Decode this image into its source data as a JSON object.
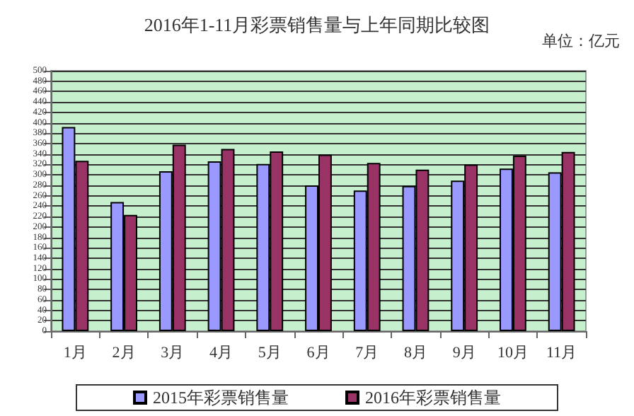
{
  "chart_data": {
    "type": "bar",
    "title": "2016年1-11月彩票销售量与上年同期比较图",
    "annotations": [
      "单位：亿元"
    ],
    "categories": [
      "1月",
      "2月",
      "3月",
      "4月",
      "5月",
      "6月",
      "7月",
      "8月",
      "9月",
      "10月",
      "11月"
    ],
    "series": [
      {
        "name": "2015年彩票销售量",
        "color": "#9999ff",
        "values": [
          392,
          248,
          307,
          326,
          321,
          280,
          270,
          279,
          289,
          312,
          305
        ]
      },
      {
        "name": "2016年彩票销售量",
        "color": "#993366",
        "values": [
          327,
          223,
          358,
          350,
          345,
          339,
          323,
          310,
          320,
          337,
          344
        ]
      }
    ],
    "ylim": [
      0,
      500
    ],
    "yticks": [
      0,
      20,
      40,
      60,
      80,
      100,
      120,
      140,
      160,
      180,
      200,
      220,
      240,
      260,
      280,
      300,
      320,
      340,
      360,
      380,
      400,
      420,
      440,
      460,
      480,
      500
    ],
    "grid": "y",
    "legend": "bottom"
  }
}
